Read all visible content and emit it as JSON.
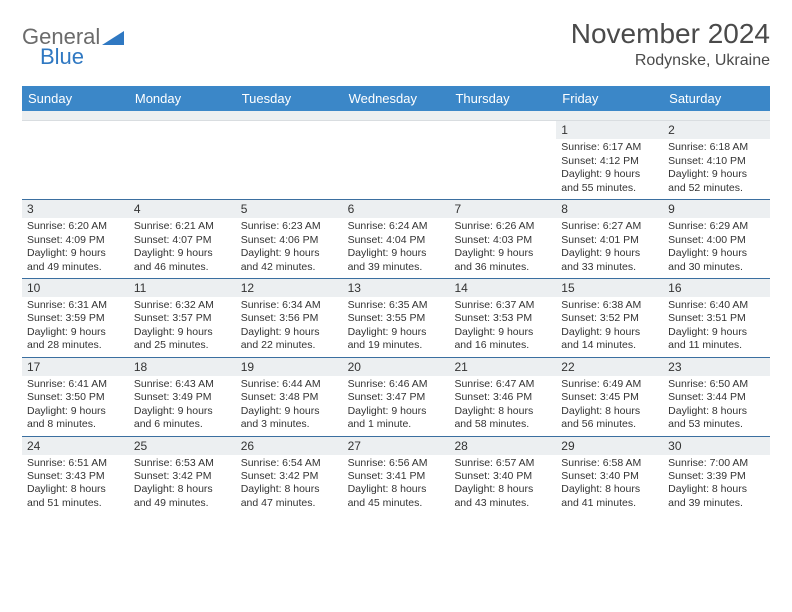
{
  "logo": {
    "general": "General",
    "blue": "Blue",
    "accent_color": "#2f78c2",
    "gray_color": "#6b6b6b"
  },
  "title": "November 2024",
  "location": "Rodynske, Ukraine",
  "header_bg": "#3b87c8",
  "numbar_bg": "#eceff1",
  "border_color": "#3b6fa0",
  "day_names": [
    "Sunday",
    "Monday",
    "Tuesday",
    "Wednesday",
    "Thursday",
    "Friday",
    "Saturday"
  ],
  "weeks": [
    [
      {
        "n": "",
        "sr": "",
        "ss": "",
        "dl": ""
      },
      {
        "n": "",
        "sr": "",
        "ss": "",
        "dl": ""
      },
      {
        "n": "",
        "sr": "",
        "ss": "",
        "dl": ""
      },
      {
        "n": "",
        "sr": "",
        "ss": "",
        "dl": ""
      },
      {
        "n": "",
        "sr": "",
        "ss": "",
        "dl": ""
      },
      {
        "n": "1",
        "sr": "Sunrise: 6:17 AM",
        "ss": "Sunset: 4:12 PM",
        "dl": "Daylight: 9 hours and 55 minutes."
      },
      {
        "n": "2",
        "sr": "Sunrise: 6:18 AM",
        "ss": "Sunset: 4:10 PM",
        "dl": "Daylight: 9 hours and 52 minutes."
      }
    ],
    [
      {
        "n": "3",
        "sr": "Sunrise: 6:20 AM",
        "ss": "Sunset: 4:09 PM",
        "dl": "Daylight: 9 hours and 49 minutes."
      },
      {
        "n": "4",
        "sr": "Sunrise: 6:21 AM",
        "ss": "Sunset: 4:07 PM",
        "dl": "Daylight: 9 hours and 46 minutes."
      },
      {
        "n": "5",
        "sr": "Sunrise: 6:23 AM",
        "ss": "Sunset: 4:06 PM",
        "dl": "Daylight: 9 hours and 42 minutes."
      },
      {
        "n": "6",
        "sr": "Sunrise: 6:24 AM",
        "ss": "Sunset: 4:04 PM",
        "dl": "Daylight: 9 hours and 39 minutes."
      },
      {
        "n": "7",
        "sr": "Sunrise: 6:26 AM",
        "ss": "Sunset: 4:03 PM",
        "dl": "Daylight: 9 hours and 36 minutes."
      },
      {
        "n": "8",
        "sr": "Sunrise: 6:27 AM",
        "ss": "Sunset: 4:01 PM",
        "dl": "Daylight: 9 hours and 33 minutes."
      },
      {
        "n": "9",
        "sr": "Sunrise: 6:29 AM",
        "ss": "Sunset: 4:00 PM",
        "dl": "Daylight: 9 hours and 30 minutes."
      }
    ],
    [
      {
        "n": "10",
        "sr": "Sunrise: 6:31 AM",
        "ss": "Sunset: 3:59 PM",
        "dl": "Daylight: 9 hours and 28 minutes."
      },
      {
        "n": "11",
        "sr": "Sunrise: 6:32 AM",
        "ss": "Sunset: 3:57 PM",
        "dl": "Daylight: 9 hours and 25 minutes."
      },
      {
        "n": "12",
        "sr": "Sunrise: 6:34 AM",
        "ss": "Sunset: 3:56 PM",
        "dl": "Daylight: 9 hours and 22 minutes."
      },
      {
        "n": "13",
        "sr": "Sunrise: 6:35 AM",
        "ss": "Sunset: 3:55 PM",
        "dl": "Daylight: 9 hours and 19 minutes."
      },
      {
        "n": "14",
        "sr": "Sunrise: 6:37 AM",
        "ss": "Sunset: 3:53 PM",
        "dl": "Daylight: 9 hours and 16 minutes."
      },
      {
        "n": "15",
        "sr": "Sunrise: 6:38 AM",
        "ss": "Sunset: 3:52 PM",
        "dl": "Daylight: 9 hours and 14 minutes."
      },
      {
        "n": "16",
        "sr": "Sunrise: 6:40 AM",
        "ss": "Sunset: 3:51 PM",
        "dl": "Daylight: 9 hours and 11 minutes."
      }
    ],
    [
      {
        "n": "17",
        "sr": "Sunrise: 6:41 AM",
        "ss": "Sunset: 3:50 PM",
        "dl": "Daylight: 9 hours and 8 minutes."
      },
      {
        "n": "18",
        "sr": "Sunrise: 6:43 AM",
        "ss": "Sunset: 3:49 PM",
        "dl": "Daylight: 9 hours and 6 minutes."
      },
      {
        "n": "19",
        "sr": "Sunrise: 6:44 AM",
        "ss": "Sunset: 3:48 PM",
        "dl": "Daylight: 9 hours and 3 minutes."
      },
      {
        "n": "20",
        "sr": "Sunrise: 6:46 AM",
        "ss": "Sunset: 3:47 PM",
        "dl": "Daylight: 9 hours and 1 minute."
      },
      {
        "n": "21",
        "sr": "Sunrise: 6:47 AM",
        "ss": "Sunset: 3:46 PM",
        "dl": "Daylight: 8 hours and 58 minutes."
      },
      {
        "n": "22",
        "sr": "Sunrise: 6:49 AM",
        "ss": "Sunset: 3:45 PM",
        "dl": "Daylight: 8 hours and 56 minutes."
      },
      {
        "n": "23",
        "sr": "Sunrise: 6:50 AM",
        "ss": "Sunset: 3:44 PM",
        "dl": "Daylight: 8 hours and 53 minutes."
      }
    ],
    [
      {
        "n": "24",
        "sr": "Sunrise: 6:51 AM",
        "ss": "Sunset: 3:43 PM",
        "dl": "Daylight: 8 hours and 51 minutes."
      },
      {
        "n": "25",
        "sr": "Sunrise: 6:53 AM",
        "ss": "Sunset: 3:42 PM",
        "dl": "Daylight: 8 hours and 49 minutes."
      },
      {
        "n": "26",
        "sr": "Sunrise: 6:54 AM",
        "ss": "Sunset: 3:42 PM",
        "dl": "Daylight: 8 hours and 47 minutes."
      },
      {
        "n": "27",
        "sr": "Sunrise: 6:56 AM",
        "ss": "Sunset: 3:41 PM",
        "dl": "Daylight: 8 hours and 45 minutes."
      },
      {
        "n": "28",
        "sr": "Sunrise: 6:57 AM",
        "ss": "Sunset: 3:40 PM",
        "dl": "Daylight: 8 hours and 43 minutes."
      },
      {
        "n": "29",
        "sr": "Sunrise: 6:58 AM",
        "ss": "Sunset: 3:40 PM",
        "dl": "Daylight: 8 hours and 41 minutes."
      },
      {
        "n": "30",
        "sr": "Sunrise: 7:00 AM",
        "ss": "Sunset: 3:39 PM",
        "dl": "Daylight: 8 hours and 39 minutes."
      }
    ]
  ]
}
